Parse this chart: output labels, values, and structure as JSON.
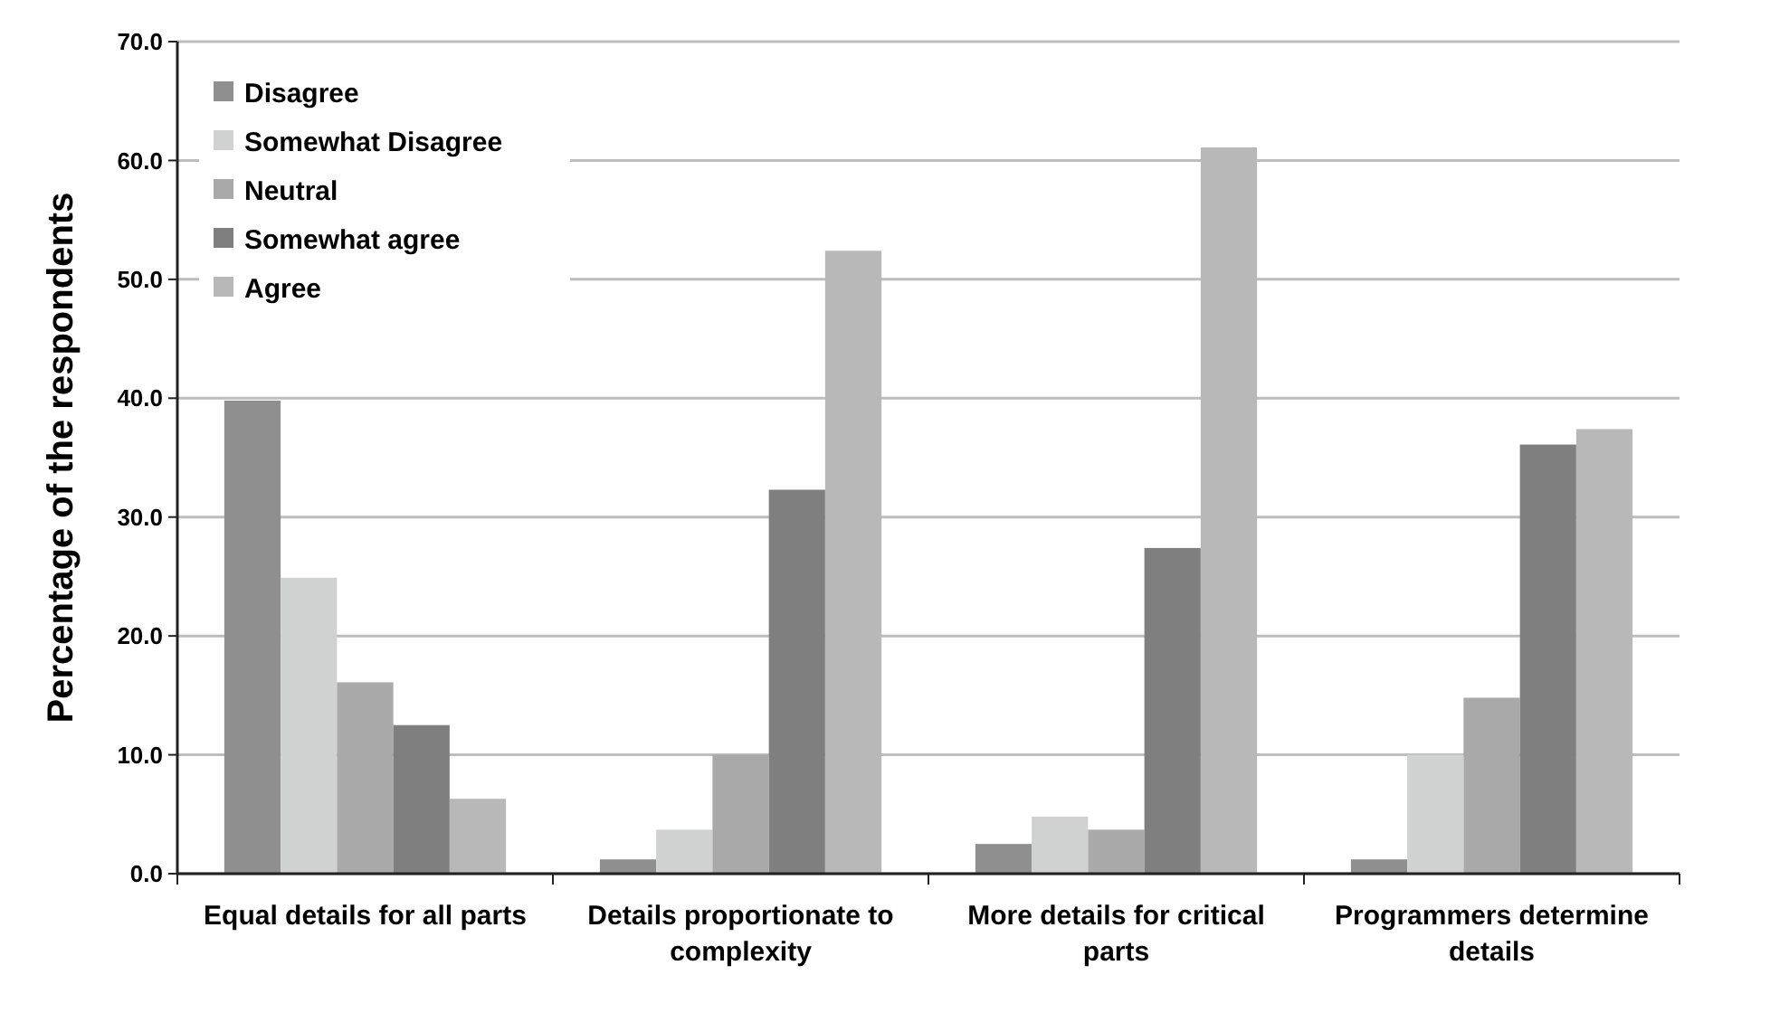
{
  "chart_data": {
    "type": "bar",
    "ylabel": "Percentage of the respondents",
    "categories": [
      [
        "Equal details for all parts"
      ],
      [
        "Details proportionate to",
        "complexity"
      ],
      [
        "More details for critical",
        "parts"
      ],
      [
        "Programmers determine",
        "details"
      ]
    ],
    "series": [
      {
        "name": "Disagree",
        "color": "#8f8f8f",
        "values": [
          39.8,
          1.2,
          2.5,
          1.2
        ]
      },
      {
        "name": "Somewhat Disagree",
        "color": "#d0d2d1",
        "values": [
          24.9,
          3.7,
          4.8,
          10.0
        ]
      },
      {
        "name": "Neutral",
        "color": "#a9a9a9",
        "values": [
          16.1,
          10.0,
          3.7,
          14.8
        ]
      },
      {
        "name": "Somewhat agree",
        "color": "#7f7f7f",
        "values": [
          12.5,
          32.3,
          27.4,
          36.1
        ]
      },
      {
        "name": "Agree",
        "color": "#b8b8b8",
        "values": [
          6.3,
          52.4,
          61.1,
          37.4
        ]
      }
    ],
    "ylim": [
      0,
      70
    ],
    "yticks": [
      {
        "value": 0,
        "label": "0.0"
      },
      {
        "value": 10,
        "label": "10.0"
      },
      {
        "value": 20,
        "label": "20.0"
      },
      {
        "value": 30,
        "label": "30.0"
      },
      {
        "value": 40,
        "label": "40.0"
      },
      {
        "value": 50,
        "label": "50.0"
      },
      {
        "value": 60,
        "label": "60.0"
      },
      {
        "value": 70,
        "label": "70.0"
      }
    ],
    "grid": "y",
    "legend": "top left"
  }
}
